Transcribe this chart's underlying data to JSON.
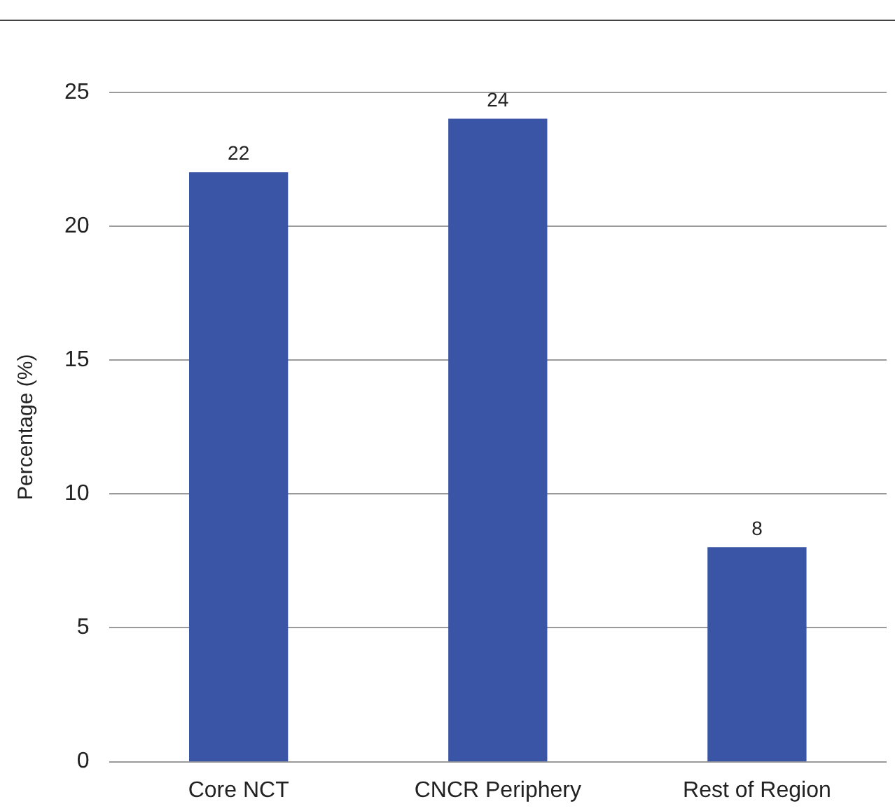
{
  "chart_data": {
    "type": "bar",
    "ylabel": "Percentage (%)",
    "categories": [
      "Core NCT",
      "CNCR Periphery",
      "Rest of Region"
    ],
    "values": [
      22,
      24,
      8
    ],
    "color": "#3a55a5",
    "ylim": [
      0,
      25
    ],
    "yticks": [
      0,
      5,
      10,
      15,
      20,
      25
    ],
    "grid": "y",
    "data_labels": true,
    "legend": false
  }
}
